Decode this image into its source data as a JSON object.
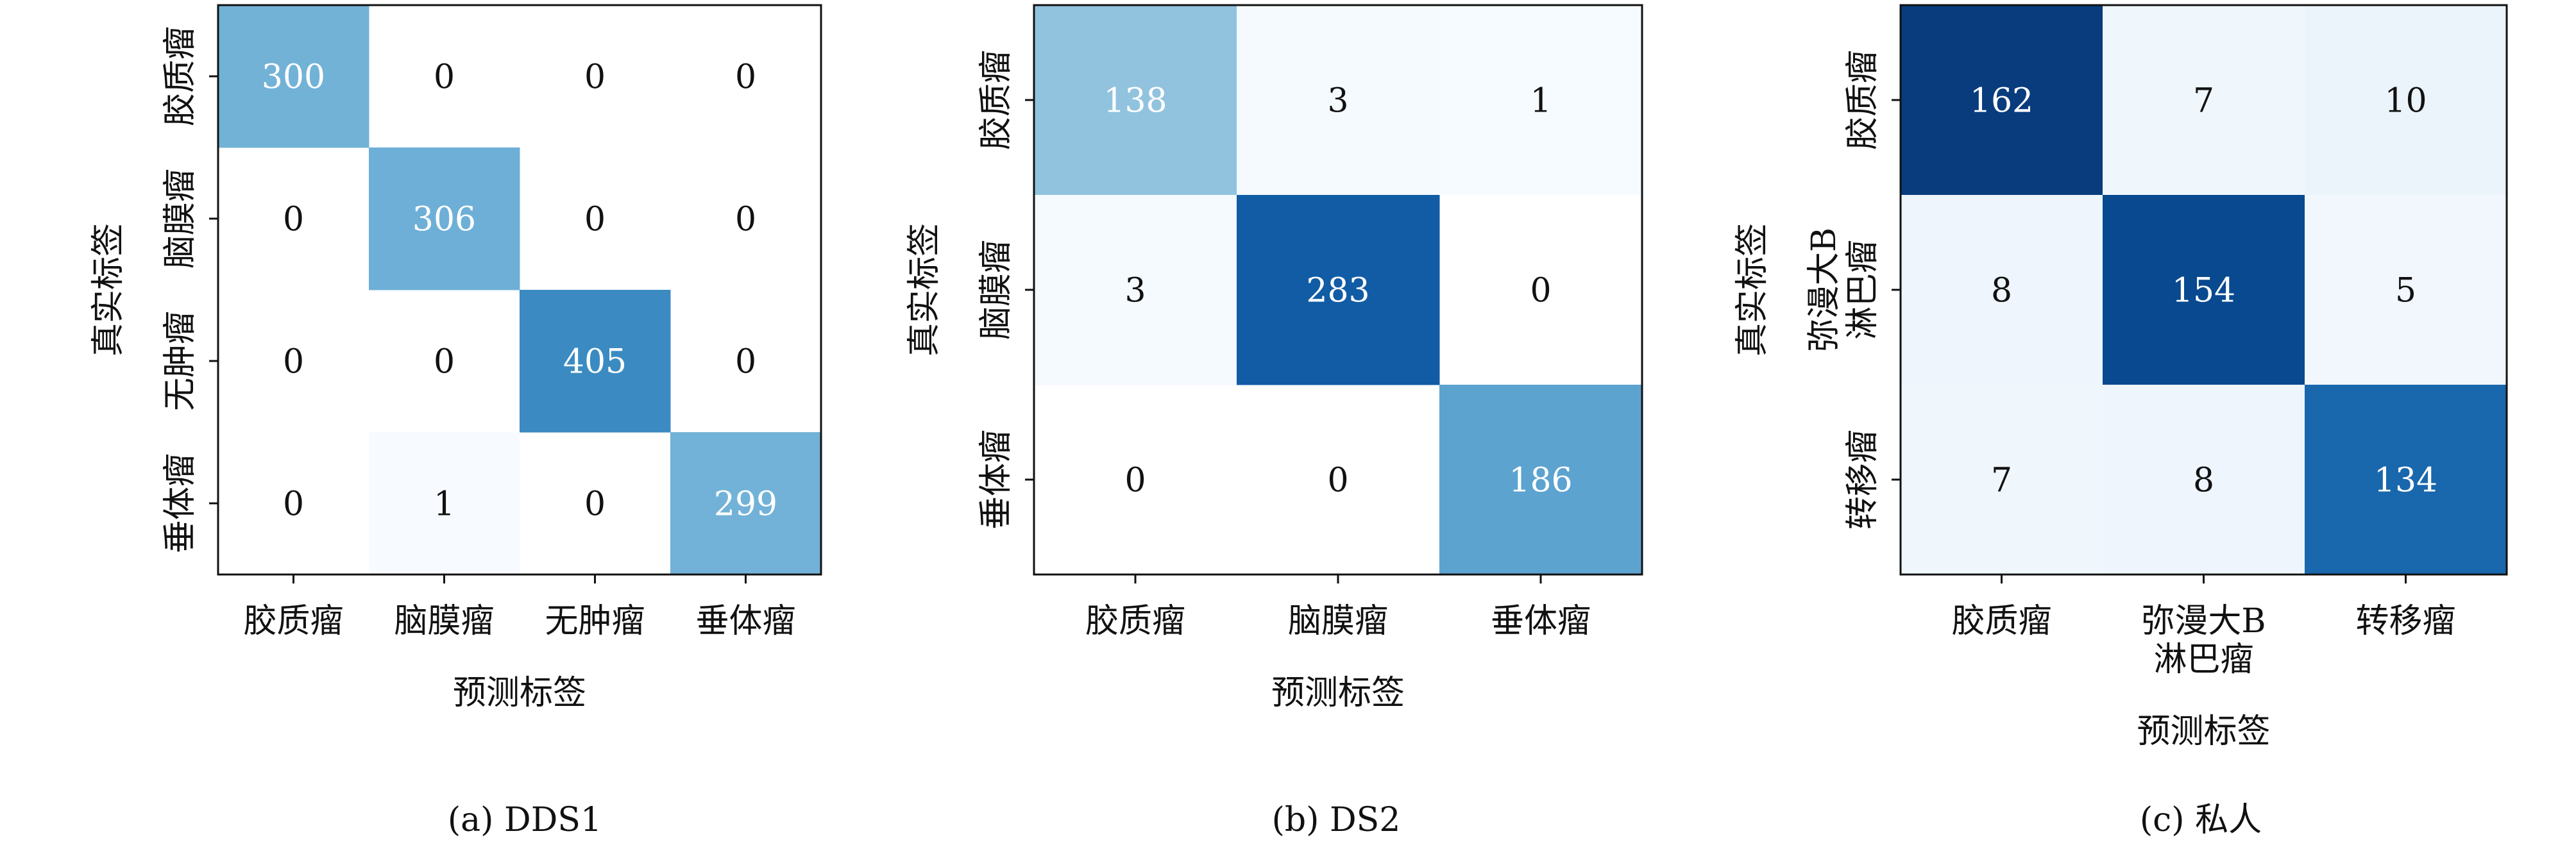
{
  "chart_data": [
    {
      "type": "heatmap",
      "caption": "(a) DDS1",
      "xlabel": "预测标签",
      "ylabel": "真实标签",
      "x_categories": [
        "胶质瘤",
        "脑膜瘤",
        "无肿瘤",
        "垂体瘤"
      ],
      "y_categories": [
        "胶质瘤",
        "脑膜瘤",
        "无肿瘤",
        "垂体瘤"
      ],
      "matrix": [
        [
          300,
          0,
          0,
          0
        ],
        [
          0,
          306,
          0,
          0
        ],
        [
          0,
          0,
          405,
          0
        ],
        [
          0,
          1,
          0,
          299
        ]
      ],
      "colormap": "Blues"
    },
    {
      "type": "heatmap",
      "caption": "(b) DS2",
      "xlabel": "预测标签",
      "ylabel": "真实标签",
      "x_categories": [
        "胶质瘤",
        "脑膜瘤",
        "垂体瘤"
      ],
      "y_categories": [
        "胶质瘤",
        "脑膜瘤",
        "垂体瘤"
      ],
      "matrix": [
        [
          138,
          3,
          1
        ],
        [
          3,
          283,
          0
        ],
        [
          0,
          0,
          186
        ]
      ],
      "colormap": "Blues"
    },
    {
      "type": "heatmap",
      "caption": "(c) 私人",
      "xlabel": "预测标签",
      "ylabel": "真实标签",
      "x_categories": [
        "胶质瘤",
        "弥漫大B\n淋巴瘤",
        "转移瘤"
      ],
      "y_categories": [
        "胶质瘤",
        "弥漫大B\n淋巴瘤",
        "转移瘤"
      ],
      "matrix": [
        [
          162,
          7,
          10
        ],
        [
          8,
          154,
          5
        ],
        [
          7,
          8,
          134
        ]
      ],
      "colormap": "Blues"
    }
  ]
}
